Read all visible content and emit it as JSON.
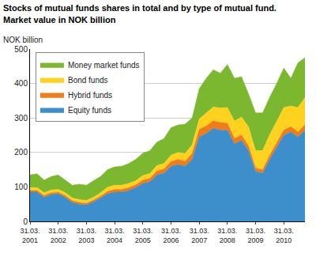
{
  "chart_data": {
    "type": "area",
    "title": "Stocks of mutual funds shares in total and by type of mutual fund.\nMarket value in NOK billion",
    "ylabel": "NOK billion",
    "stacked": true,
    "grid": true,
    "legend": "top left",
    "categories": [
      "31.03. 2001",
      null,
      null,
      null,
      "31.03. 2002",
      null,
      null,
      null,
      "31.03. 2003",
      null,
      null,
      null,
      "31.03. 2004",
      null,
      null,
      null,
      "31.03. 2005",
      null,
      null,
      null,
      "31.03. 2006",
      null,
      null,
      null,
      "31.03. 2007",
      null,
      null,
      null,
      "31.03. 2008",
      null,
      null,
      null,
      "31.03. 2009",
      null,
      null,
      null,
      "31.03. 2010",
      null,
      null,
      null
    ],
    "ylim": [
      0,
      500
    ],
    "yticks": [
      0,
      100,
      200,
      300,
      400,
      500
    ],
    "series": [
      {
        "name": "Equity funds",
        "color": "#3d8fcc",
        "values": [
          85,
          85,
          70,
          78,
          80,
          70,
          55,
          50,
          48,
          57,
          68,
          80,
          85,
          85,
          90,
          98,
          110,
          115,
          135,
          140,
          160,
          165,
          160,
          180,
          245,
          255,
          270,
          265,
          265,
          225,
          235,
          205,
          145,
          140,
          180,
          215,
          250,
          260,
          245,
          265
        ]
      },
      {
        "name": "Hybrid funds",
        "color": "#f07d1a",
        "values": [
          5,
          5,
          5,
          5,
          5,
          5,
          5,
          5,
          5,
          5,
          5,
          7,
          8,
          8,
          8,
          8,
          10,
          10,
          12,
          12,
          14,
          15,
          15,
          17,
          22,
          22,
          22,
          22,
          20,
          16,
          16,
          14,
          10,
          10,
          12,
          13,
          15,
          15,
          15,
          16
        ]
      },
      {
        "name": "Bond funds",
        "color": "#ffd21f",
        "values": [
          8,
          8,
          8,
          8,
          8,
          8,
          8,
          8,
          8,
          8,
          10,
          12,
          12,
          12,
          12,
          12,
          13,
          14,
          15,
          16,
          18,
          20,
          22,
          25,
          30,
          38,
          40,
          42,
          45,
          50,
          52,
          55,
          50,
          55,
          60,
          62,
          65,
          60,
          70,
          78
        ]
      },
      {
        "name": "Money market funds",
        "color": "#7cb82f",
        "values": [
          37,
          40,
          37,
          39,
          42,
          37,
          37,
          45,
          44,
          48,
          47,
          51,
          53,
          55,
          58,
          62,
          65,
          66,
          68,
          72,
          80,
          80,
          85,
          78,
          88,
          100,
          108,
          101,
          125,
          124,
          117,
          96,
          110,
          110,
          108,
          110,
          115,
          80,
          130,
          116
        ]
      }
    ]
  }
}
